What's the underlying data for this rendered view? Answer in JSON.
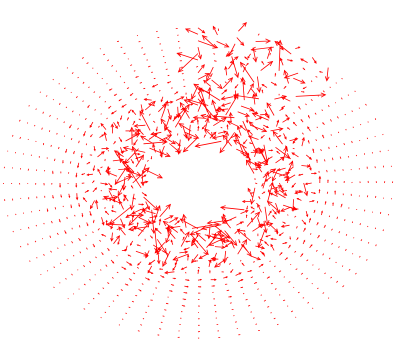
{
  "chart_data": {
    "type": "quiver",
    "title": "",
    "xlabel": "",
    "ylabel": "",
    "axes_visible": false,
    "grid": false,
    "legend": "none",
    "arrow_color": "#ff0000",
    "background_color": "#ffffff",
    "field": {
      "layout": "polar",
      "center": [
        0,
        0
      ],
      "hole_radius": 1.0,
      "outer_radius": 3.4,
      "rings": 18,
      "spokes": 60,
      "x_scale": 1.55,
      "y_scale": 1.0
    },
    "x_range": [
      -5.5,
      5.5
    ],
    "y_range": [
      -3.8,
      3.8
    ]
  }
}
